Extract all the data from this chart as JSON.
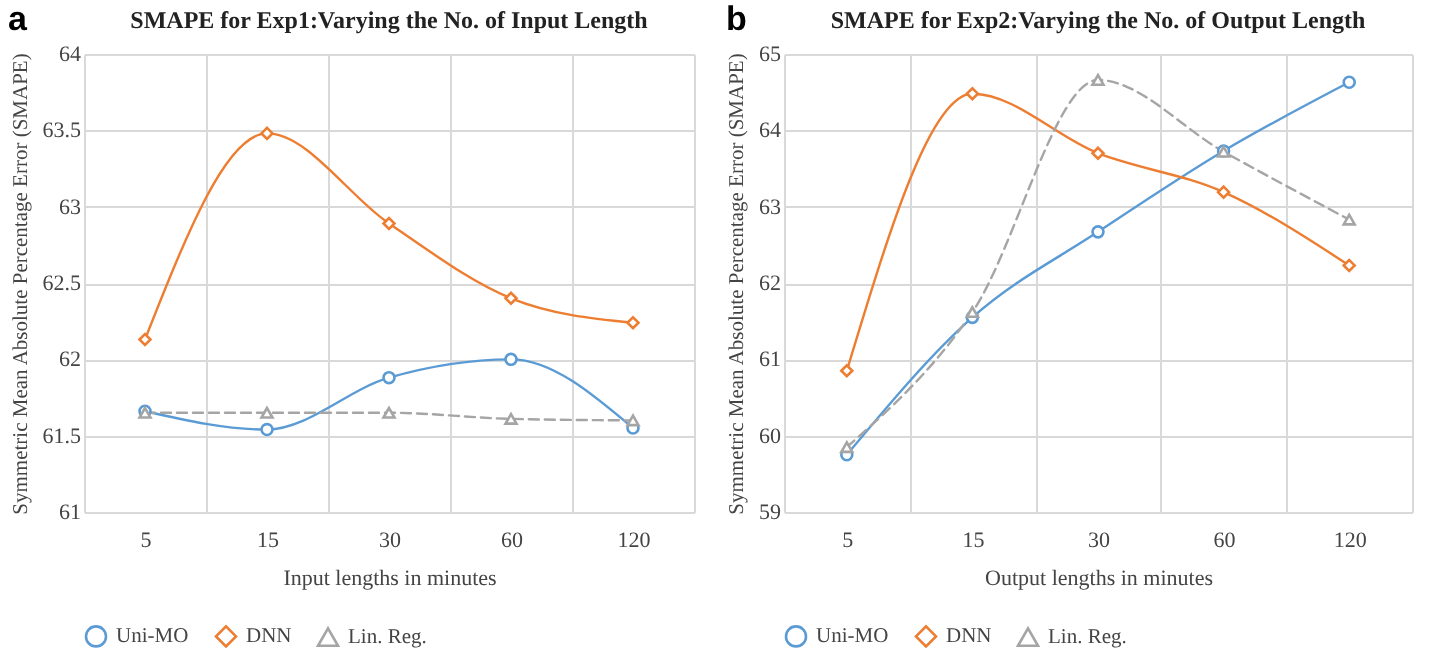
{
  "chart_data": [
    {
      "type": "line",
      "title": "SMAPE for Exp1:Varying the No. of Input Length",
      "xlabel": "Input lengths in minutes",
      "ylabel": "Symmetric Mean Absolute Percentage Error (SMAPE)",
      "annotations": [
        "a"
      ],
      "categories": [
        "5",
        "15",
        "30",
        "60",
        "120"
      ],
      "ylim": [
        61,
        64
      ],
      "yticks": [
        61,
        61.5,
        62,
        62.5,
        63,
        63.5,
        64
      ],
      "grid": true,
      "legend": "bottom",
      "series": [
        {
          "name": "Uni-MO",
          "color": "#5b9bd5",
          "marker": "circle",
          "line_style": "solid",
          "values": [
            61.66,
            61.54,
            61.88,
            62.0,
            61.55
          ]
        },
        {
          "name": "DNN",
          "color": "#ed7d31",
          "marker": "diamond",
          "line_style": "solid",
          "values": [
            62.13,
            63.48,
            62.89,
            62.4,
            62.24
          ]
        },
        {
          "name": "Lin. Reg.",
          "color": "#a5a5a5",
          "marker": "triangle",
          "line_style": "dashed",
          "values": [
            61.65,
            61.65,
            61.65,
            61.61,
            61.6
          ]
        }
      ]
    },
    {
      "type": "line",
      "title": "SMAPE for Exp2:Varying the No. of Output Length",
      "xlabel": "Output lengths in minutes",
      "ylabel": "Symmetric Mean Absolute Percentage Error (SMAPE)",
      "annotations": [
        "b"
      ],
      "categories": [
        "5",
        "15",
        "30",
        "60",
        "120"
      ],
      "ylim": [
        59,
        65
      ],
      "yticks": [
        59,
        60,
        61,
        62,
        63,
        64,
        65
      ],
      "grid": true,
      "legend": "bottom",
      "series": [
        {
          "name": "Uni-MO",
          "color": "#5b9bd5",
          "marker": "circle",
          "line_style": "solid",
          "values": [
            59.75,
            61.55,
            62.67,
            63.73,
            64.63
          ]
        },
        {
          "name": "DNN",
          "color": "#ed7d31",
          "marker": "diamond",
          "line_style": "solid",
          "values": [
            60.85,
            64.48,
            63.7,
            63.19,
            62.23
          ]
        },
        {
          "name": "Lin. Reg.",
          "color": "#a5a5a5",
          "marker": "triangle",
          "line_style": "dashed",
          "values": [
            59.85,
            61.62,
            64.66,
            63.72,
            62.83
          ]
        }
      ]
    }
  ]
}
